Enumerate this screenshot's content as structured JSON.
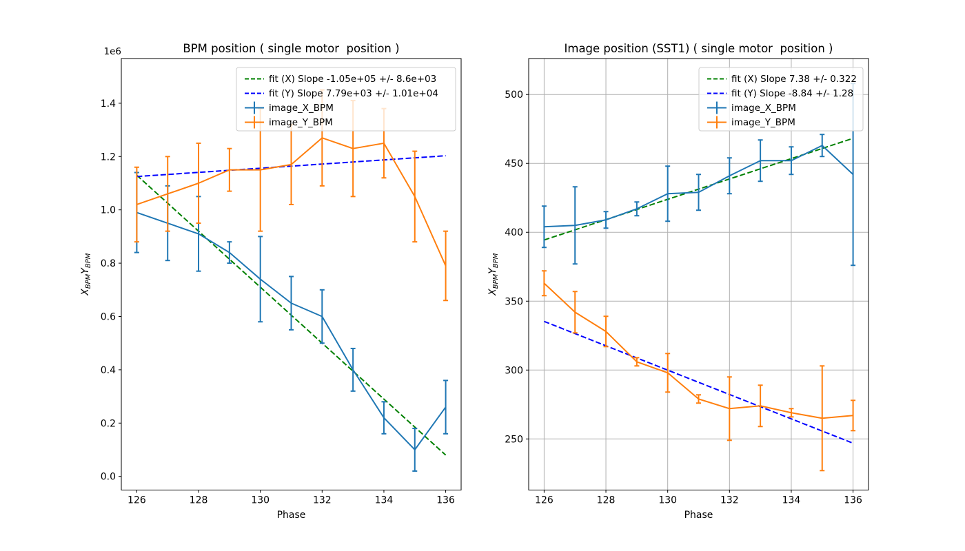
{
  "figure": {
    "background": "#ffffff"
  },
  "colors": {
    "series_x": "#1f77b4",
    "series_y": "#ff7f0e",
    "fit_x": "#008000",
    "fit_y": "#0000ff",
    "grid": "#b0b0b0",
    "axis": "#000000",
    "legend_edge": "#cccccc",
    "legend_face": "rgba(255,255,255,0.8)"
  },
  "chart_data": [
    {
      "id": "bpm-position-plot",
      "type": "line",
      "title": "BPM position ( single motor  position )",
      "xlabel": "Phase",
      "offset_text": "1e6",
      "ylabel_parts": [
        {
          "text": "X",
          "sub": false
        },
        {
          "text": "BPM",
          "sub": true
        },
        {
          "text": "Y",
          "sub": false
        },
        {
          "text": "BPM",
          "sub": true
        }
      ],
      "grid": false,
      "xlim": [
        125.5,
        136.5
      ],
      "ylim": [
        -51200,
        1567700
      ],
      "xticks": [
        126,
        128,
        130,
        132,
        134,
        136
      ],
      "xtick_labels": [
        "126",
        "128",
        "130",
        "132",
        "134",
        "136"
      ],
      "yticks": [
        0,
        200000,
        400000,
        600000,
        800000,
        1000000,
        1200000,
        1400000
      ],
      "ytick_labels": [
        "0.0",
        "0.2",
        "0.4",
        "0.6",
        "0.8",
        "1.0",
        "1.2",
        "1.4"
      ],
      "legend_position": "upper right",
      "x": [
        126,
        127,
        128,
        129,
        130,
        131,
        132,
        133,
        134,
        135,
        136
      ],
      "series": [
        {
          "name": "fit (X) Slope -1.05e+05 +/- 8.6e+03",
          "key": "fit_x",
          "style": "dashed",
          "fit": {
            "x0": 126,
            "y0": 1130000,
            "x1": 136,
            "y1": 80000
          }
        },
        {
          "name": "fit (Y) Slope 7.79e+03 +/- 1.01e+04",
          "key": "fit_y",
          "style": "dashed",
          "fit": {
            "x0": 126,
            "y0": 1125000,
            "x1": 136,
            "y1": 1203000
          }
        },
        {
          "name": "image_X_BPM",
          "key": "series_x",
          "style": "errorbar",
          "values": [
            990000,
            950000,
            910000,
            840000,
            740000,
            650000,
            600000,
            400000,
            220000,
            100000,
            260000
          ],
          "errors": [
            150000,
            140000,
            140000,
            40000,
            160000,
            100000,
            100000,
            80000,
            60000,
            80000,
            100000
          ]
        },
        {
          "name": "image_Y_BPM",
          "key": "series_y",
          "style": "errorbar",
          "values": [
            1020000,
            1060000,
            1100000,
            1150000,
            1150000,
            1170000,
            1270000,
            1230000,
            1250000,
            1050000,
            790000
          ],
          "errors": [
            140000,
            140000,
            150000,
            80000,
            230000,
            150000,
            180000,
            180000,
            130000,
            170000,
            130000
          ]
        }
      ]
    },
    {
      "id": "image-position-sst1-plot",
      "type": "line",
      "title": "Image position (SST1) ( single motor  position )",
      "xlabel": "Phase",
      "offset_text": "",
      "ylabel_parts": [
        {
          "text": "X",
          "sub": false
        },
        {
          "text": "BPM",
          "sub": true
        },
        {
          "text": "Y",
          "sub": false
        },
        {
          "text": "BPM",
          "sub": true
        }
      ],
      "grid": true,
      "xlim": [
        125.5,
        136.5
      ],
      "ylim": [
        212.9,
        526.1
      ],
      "xticks": [
        126,
        128,
        130,
        132,
        134,
        136
      ],
      "xtick_labels": [
        "126",
        "128",
        "130",
        "132",
        "134",
        "136"
      ],
      "yticks": [
        250,
        300,
        350,
        400,
        450,
        500
      ],
      "ytick_labels": [
        "250",
        "300",
        "350",
        "400",
        "450",
        "500"
      ],
      "legend_position": "upper right",
      "x": [
        126,
        127,
        128,
        129,
        130,
        131,
        132,
        133,
        134,
        135,
        136
      ],
      "series": [
        {
          "name": "fit (X) Slope 7.38 +/- 0.322",
          "key": "fit_x",
          "style": "dashed",
          "fit": {
            "x0": 126,
            "y0": 394.4,
            "x1": 136,
            "y1": 468.2
          }
        },
        {
          "name": "fit (Y) Slope -8.84 +/- 1.28",
          "key": "fit_y",
          "style": "dashed",
          "fit": {
            "x0": 126,
            "y0": 335.3,
            "x1": 136,
            "y1": 246.9
          }
        },
        {
          "name": "image_X_BPM",
          "key": "series_x",
          "style": "errorbar",
          "values": [
            404,
            405,
            409,
            417,
            428,
            429,
            441,
            452,
            452,
            463,
            442
          ],
          "errors": [
            15,
            28,
            6,
            5,
            20,
            13,
            13,
            15,
            10,
            8,
            66
          ]
        },
        {
          "name": "image_Y_BPM",
          "key": "series_y",
          "style": "errorbar",
          "values": [
            363,
            342,
            328,
            306,
            298,
            279,
            272,
            274,
            269,
            265,
            267
          ],
          "errors": [
            9,
            15,
            11,
            3,
            14,
            3,
            23,
            15,
            3,
            38,
            11
          ]
        }
      ]
    }
  ]
}
